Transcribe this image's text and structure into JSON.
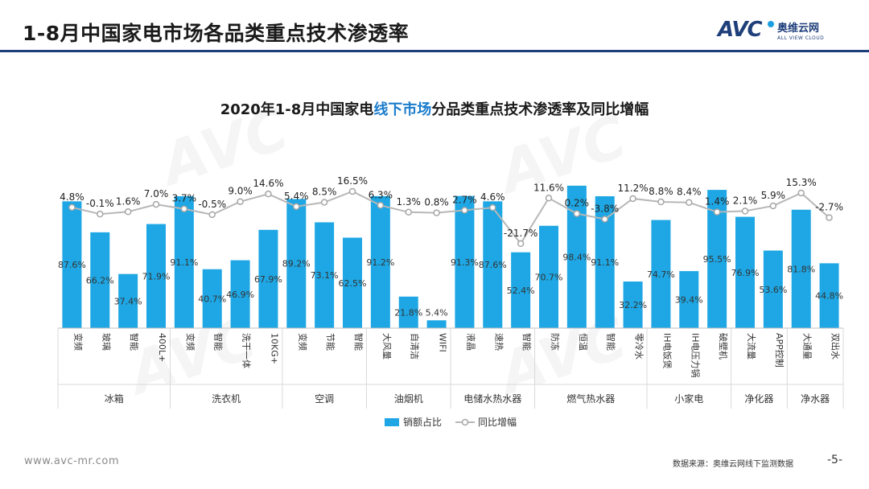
{
  "header": {
    "title": "1-8月中国家电市场各品类重点技术渗透率",
    "logo_mark": "AVC",
    "logo_cn": "奥维云网",
    "logo_en": "ALL VIEW CLOUD"
  },
  "chart_data": {
    "type": "bar",
    "title_parts": [
      "2020年1-8月中国家电",
      "线下市场",
      "分品类重点技术渗透率及同比增幅"
    ],
    "categories": [
      "变频",
      "玻璃",
      "智能",
      "400L+",
      "变频",
      "智能",
      "洗干一体",
      "10KG+",
      "变频",
      "节能",
      "智能",
      "大风量",
      "自清洁",
      "WIFI",
      "液晶",
      "速热",
      "智能",
      "防冻",
      "恒温",
      "智能",
      "零冷水",
      "IH电饭煲",
      "IH电压力锅",
      "破壁机",
      "大流量",
      "APP控制",
      "大通量",
      "双出水"
    ],
    "groups": [
      {
        "name": "冰箱",
        "count": 4
      },
      {
        "name": "洗衣机",
        "count": 4
      },
      {
        "name": "空调",
        "count": 3
      },
      {
        "name": "油烟机",
        "count": 3
      },
      {
        "name": "电储水热水器",
        "count": 3
      },
      {
        "name": "燃气热水器",
        "count": 4
      },
      {
        "name": "小家电",
        "count": 3
      },
      {
        "name": "净化器",
        "count": 2
      },
      {
        "name": "净水器",
        "count": 2
      }
    ],
    "series": [
      {
        "name": "销额占比",
        "type": "bar",
        "color": "#1ea7e4",
        "values": [
          87.6,
          66.2,
          37.4,
          71.9,
          91.1,
          40.7,
          46.9,
          67.9,
          89.2,
          73.1,
          62.5,
          91.2,
          21.8,
          5.4,
          91.3,
          87.6,
          52.4,
          70.7,
          98.4,
          91.1,
          32.2,
          74.7,
          39.4,
          95.5,
          76.9,
          53.6,
          81.8,
          44.8
        ],
        "labels": [
          "87.6%",
          "66.2%",
          "37.4%",
          "71.9%",
          "91.1%",
          "40.7%",
          "46.9%",
          "67.9%",
          "89.2%",
          "73.1%",
          "62.5%",
          "91.2%",
          "21.8%",
          "5.4%",
          "91.3%",
          "87.6%",
          "52.4%",
          "70.7%",
          "98.4%",
          "91.1%",
          "32.2%",
          "74.7%",
          "39.4%",
          "95.5%",
          "76.9%",
          "53.6%",
          "81.8%",
          "44.8%"
        ]
      },
      {
        "name": "同比增幅",
        "type": "line",
        "color": "#b7b7b7",
        "values": [
          4.8,
          -0.1,
          1.6,
          7.0,
          3.7,
          -0.5,
          9.0,
          14.6,
          5.4,
          8.5,
          16.5,
          6.3,
          1.3,
          0.8,
          2.7,
          4.6,
          -21.7,
          11.6,
          0.2,
          -3.8,
          11.2,
          8.8,
          8.4,
          1.4,
          2.1,
          5.9,
          15.3,
          -2.7
        ],
        "labels": [
          "4.8%",
          "-0.1%",
          "1.6%",
          "7.0%",
          "3.7%",
          "-0.5%",
          "9.0%",
          "14.6%",
          "5.4%",
          "8.5%",
          "16.5%",
          "6.3%",
          "1.3%",
          "0.8%",
          "2.7%",
          "4.6%",
          "-21.7%",
          "11.6%",
          "0.2%",
          "-3.8%",
          "11.2%",
          "8.8%",
          "8.4%",
          "1.4%",
          "2.1%",
          "5.9%",
          "15.3%",
          "-2.7%"
        ]
      }
    ],
    "legend_position": "bottom",
    "grid": false
  },
  "footer": {
    "website": "www.avc-mr.com",
    "source": "数据来源：奥维云网线下监测数据",
    "page": "-5-"
  },
  "watermark": "AVC"
}
